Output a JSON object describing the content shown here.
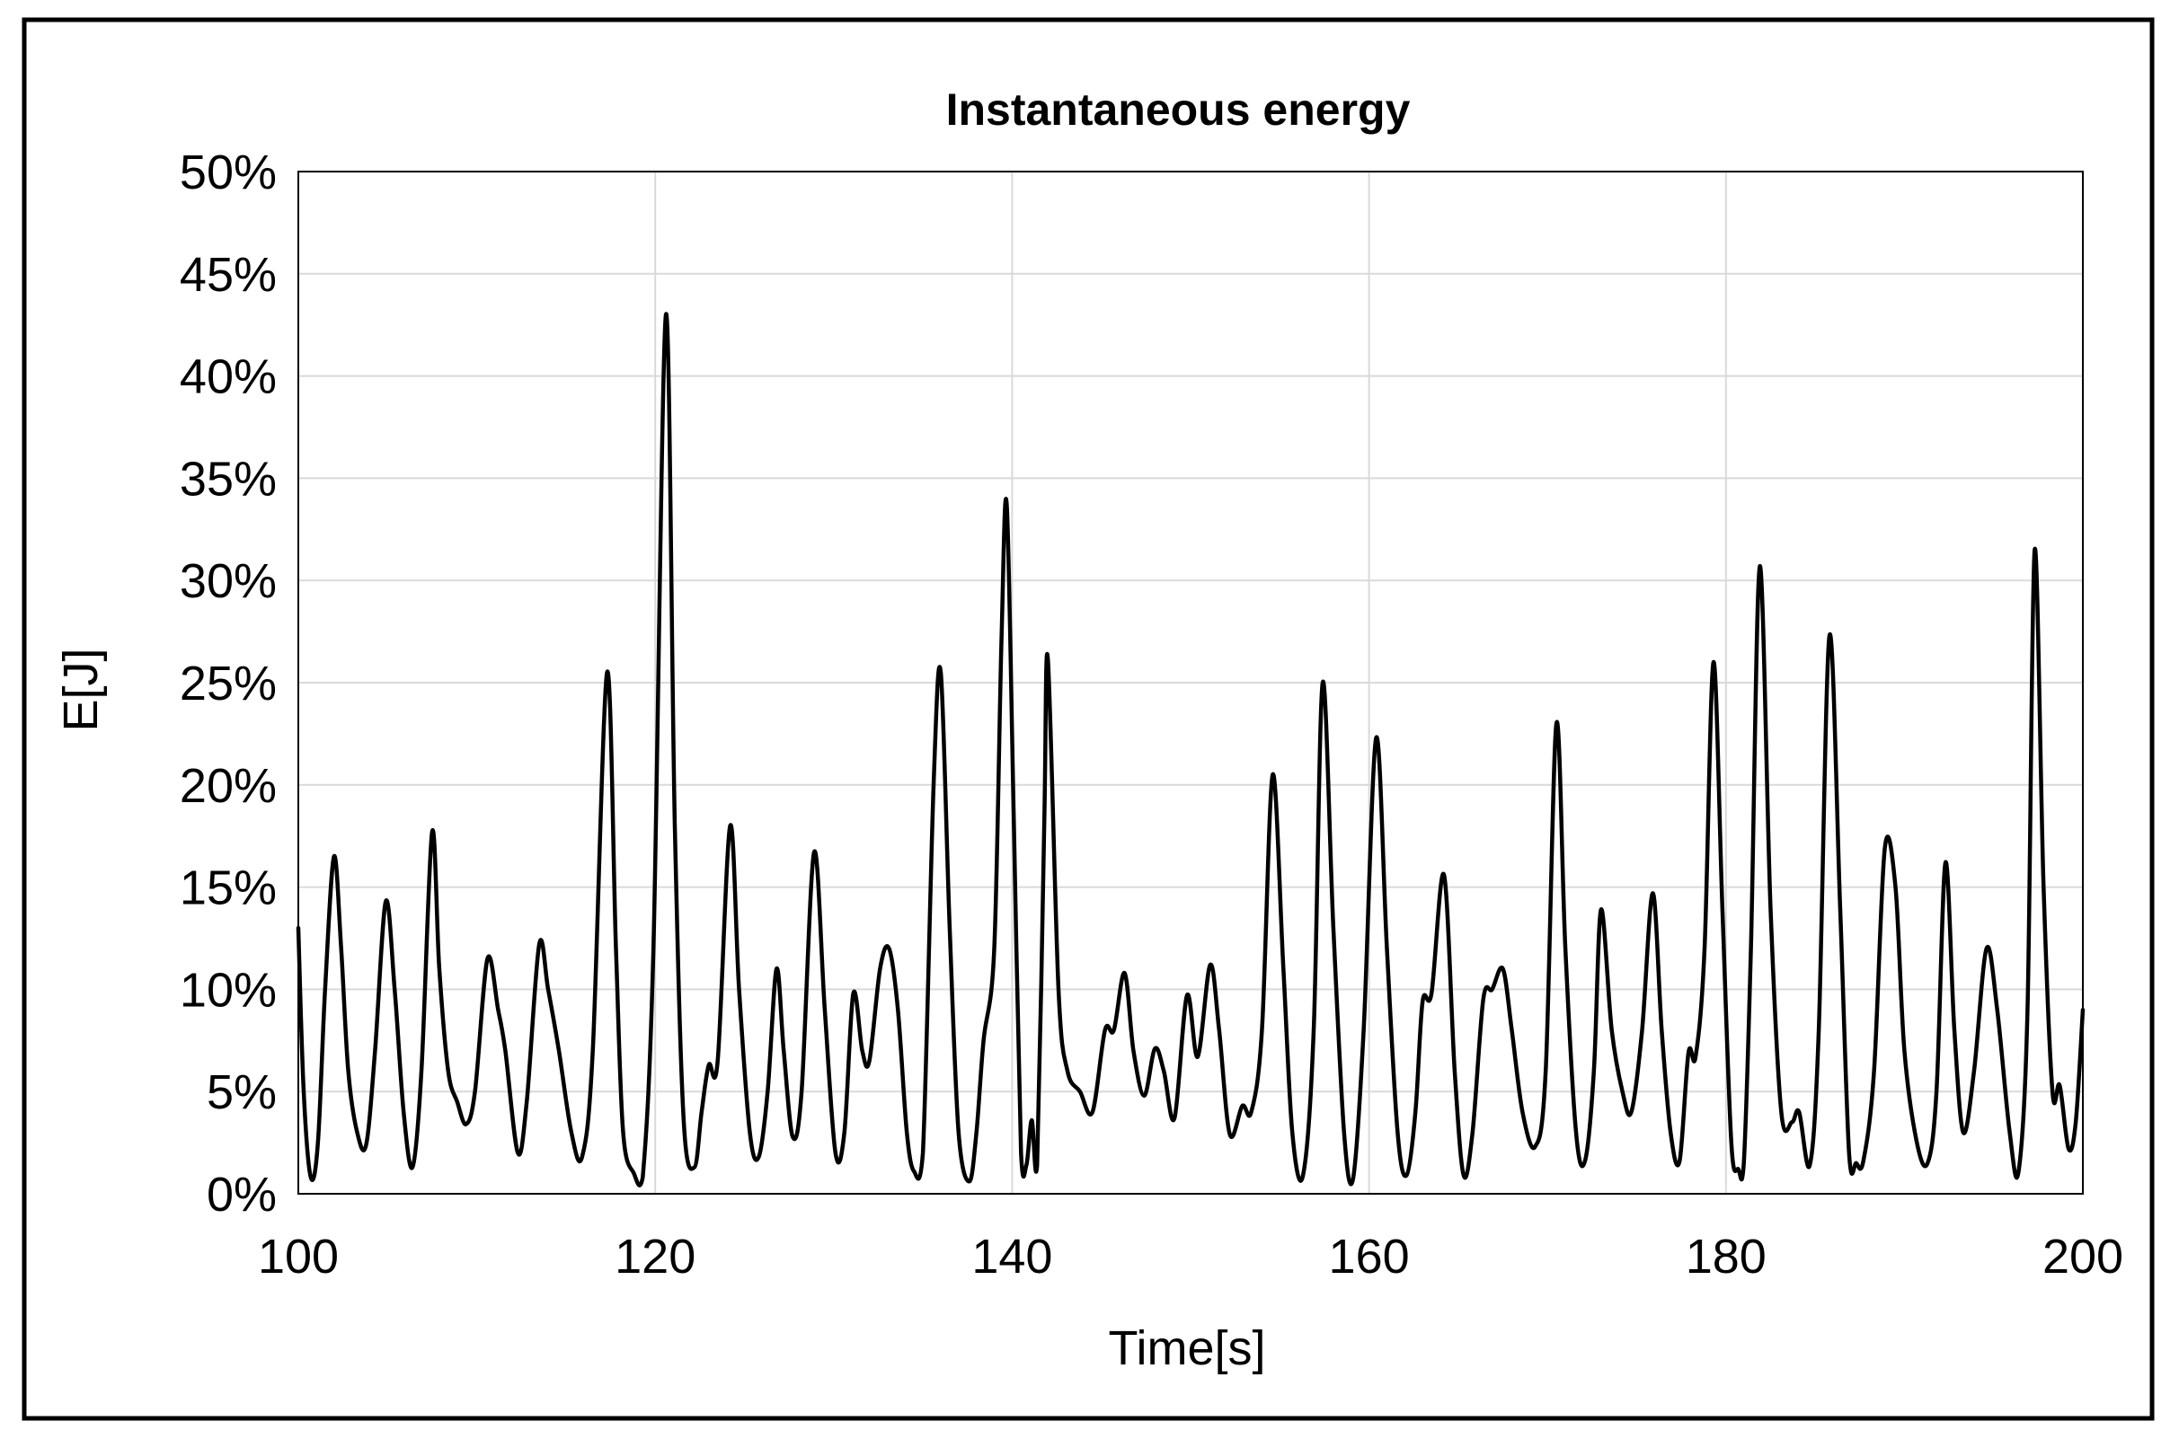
{
  "chart_data": {
    "type": "line",
    "title": "Instantaneous energy",
    "xlabel": "Time[s]",
    "ylabel": "E[J]",
    "xlim": [
      100,
      200
    ],
    "ylim": [
      0,
      50
    ],
    "x_ticks": [
      100,
      120,
      140,
      160,
      180,
      200
    ],
    "x_tick_labels": [
      "100",
      "120",
      "140",
      "160",
      "180",
      "200"
    ],
    "y_ticks": [
      0,
      5,
      10,
      15,
      20,
      25,
      30,
      35,
      40,
      45,
      50
    ],
    "y_tick_labels": [
      "0%",
      "5%",
      "10%",
      "15%",
      "20%",
      "25%",
      "30%",
      "35%",
      "40%",
      "45%",
      "50%"
    ],
    "grid": true,
    "legend": "none",
    "colors": {
      "line": "#000000",
      "grid": "#d9d9d9",
      "frame": "#000000",
      "axis": "#000000"
    },
    "series": [
      {
        "name": "Instantaneous energy",
        "points": [
          [
            100.0,
            13
          ],
          [
            100.3,
            5
          ],
          [
            100.7,
            0.8
          ],
          [
            101.1,
            2.5
          ],
          [
            101.5,
            10
          ],
          [
            102.0,
            16.5
          ],
          [
            102.4,
            12
          ],
          [
            102.8,
            6
          ],
          [
            103.3,
            3
          ],
          [
            103.8,
            2.4
          ],
          [
            104.3,
            7
          ],
          [
            104.9,
            14.3
          ],
          [
            105.4,
            10
          ],
          [
            105.9,
            4
          ],
          [
            106.4,
            1.3
          ],
          [
            106.9,
            6
          ],
          [
            107.5,
            17.7
          ],
          [
            107.9,
            11
          ],
          [
            108.4,
            6
          ],
          [
            108.9,
            4.5
          ],
          [
            109.4,
            3.4
          ],
          [
            109.9,
            5
          ],
          [
            110.6,
            11.5
          ],
          [
            111.2,
            9
          ],
          [
            111.6,
            7
          ],
          [
            112.3,
            2
          ],
          [
            112.8,
            4.5
          ],
          [
            113.5,
            12.2
          ],
          [
            114.0,
            10
          ],
          [
            114.6,
            7
          ],
          [
            115.3,
            3
          ],
          [
            115.9,
            1.8
          ],
          [
            116.5,
            7
          ],
          [
            117.3,
            25.5
          ],
          [
            117.8,
            12
          ],
          [
            118.2,
            3
          ],
          [
            118.8,
            1
          ],
          [
            119.3,
            0.8
          ],
          [
            119.9,
            12
          ],
          [
            120.6,
            43
          ],
          [
            121.1,
            18
          ],
          [
            121.6,
            3.5
          ],
          [
            122.2,
            1.3
          ],
          [
            122.6,
            4
          ],
          [
            123.0,
            6.3
          ],
          [
            123.5,
            6.5
          ],
          [
            124.2,
            18
          ],
          [
            124.7,
            10
          ],
          [
            125.3,
            3
          ],
          [
            125.8,
            1.8
          ],
          [
            126.3,
            5
          ],
          [
            126.8,
            11
          ],
          [
            127.2,
            7
          ],
          [
            127.7,
            2.8
          ],
          [
            128.2,
            5
          ],
          [
            128.9,
            16.7
          ],
          [
            129.5,
            9
          ],
          [
            130.1,
            2
          ],
          [
            130.6,
            3
          ],
          [
            131.1,
            9.8
          ],
          [
            131.6,
            7
          ],
          [
            132.0,
            6.5
          ],
          [
            132.6,
            11
          ],
          [
            133.1,
            12
          ],
          [
            133.6,
            9
          ],
          [
            134.1,
            3
          ],
          [
            134.5,
            1.1
          ],
          [
            135.0,
            2
          ],
          [
            135.6,
            20
          ],
          [
            136.0,
            25.5
          ],
          [
            136.5,
            13
          ],
          [
            137.0,
            3
          ],
          [
            137.6,
            0.6
          ],
          [
            138.0,
            3
          ],
          [
            138.4,
            7.5
          ],
          [
            139.0,
            12
          ],
          [
            139.4,
            27
          ],
          [
            139.7,
            33.7
          ],
          [
            140.1,
            18
          ],
          [
            140.5,
            2
          ],
          [
            140.8,
            1.4
          ],
          [
            141.1,
            3.6
          ],
          [
            141.4,
            1.4
          ],
          [
            141.8,
            18
          ],
          [
            142.0,
            26.2
          ],
          [
            142.6,
            10
          ],
          [
            143.1,
            6
          ],
          [
            143.8,
            5
          ],
          [
            144.5,
            4
          ],
          [
            145.2,
            8
          ],
          [
            145.7,
            8
          ],
          [
            146.3,
            10.8
          ],
          [
            146.8,
            7
          ],
          [
            147.4,
            4.8
          ],
          [
            148.0,
            7.1
          ],
          [
            148.5,
            6
          ],
          [
            149.1,
            3.7
          ],
          [
            149.8,
            9.7
          ],
          [
            150.4,
            6.7
          ],
          [
            151.1,
            11.2
          ],
          [
            151.6,
            8
          ],
          [
            152.2,
            2.9
          ],
          [
            152.9,
            4.3
          ],
          [
            153.4,
            4
          ],
          [
            154.0,
            8
          ],
          [
            154.6,
            20.5
          ],
          [
            155.2,
            11
          ],
          [
            155.7,
            3
          ],
          [
            156.3,
            0.9
          ],
          [
            156.9,
            8
          ],
          [
            157.4,
            25
          ],
          [
            158.0,
            13
          ],
          [
            158.6,
            3
          ],
          [
            159.1,
            0.7
          ],
          [
            159.7,
            8
          ],
          [
            160.4,
            22.3
          ],
          [
            161.0,
            12
          ],
          [
            161.6,
            3
          ],
          [
            162.1,
            0.9
          ],
          [
            162.6,
            4
          ],
          [
            163.0,
            9.4
          ],
          [
            163.5,
            9.8
          ],
          [
            164.2,
            15.6
          ],
          [
            164.8,
            6
          ],
          [
            165.3,
            0.9
          ],
          [
            165.8,
            3
          ],
          [
            166.4,
            9.5
          ],
          [
            166.9,
            10
          ],
          [
            167.5,
            11
          ],
          [
            168.0,
            8
          ],
          [
            168.6,
            4
          ],
          [
            169.3,
            2.3
          ],
          [
            169.9,
            6
          ],
          [
            170.5,
            23
          ],
          [
            171.0,
            12
          ],
          [
            171.6,
            3
          ],
          [
            172.1,
            1.6
          ],
          [
            172.6,
            6
          ],
          [
            173.0,
            13.9
          ],
          [
            173.6,
            8
          ],
          [
            174.2,
            5
          ],
          [
            174.7,
            4
          ],
          [
            175.3,
            8
          ],
          [
            175.9,
            14.7
          ],
          [
            176.4,
            8
          ],
          [
            176.9,
            3
          ],
          [
            177.4,
            1.6
          ],
          [
            177.9,
            6.9
          ],
          [
            178.3,
            6.7
          ],
          [
            178.8,
            12
          ],
          [
            179.3,
            26
          ],
          [
            179.8,
            14
          ],
          [
            180.3,
            2.5
          ],
          [
            180.7,
            1.2
          ],
          [
            181.0,
            1.5
          ],
          [
            181.4,
            12
          ],
          [
            181.9,
            30.7
          ],
          [
            182.5,
            14
          ],
          [
            183.1,
            4
          ],
          [
            183.7,
            3.5
          ],
          [
            184.1,
            4
          ],
          [
            184.7,
            1.4
          ],
          [
            185.2,
            8
          ],
          [
            185.8,
            27.3
          ],
          [
            186.4,
            14
          ],
          [
            186.9,
            2
          ],
          [
            187.3,
            1.5
          ],
          [
            187.7,
            1.6
          ],
          [
            188.3,
            6
          ],
          [
            188.9,
            16.9
          ],
          [
            189.5,
            15
          ],
          [
            190.0,
            7
          ],
          [
            190.7,
            2.5
          ],
          [
            191.3,
            1.5
          ],
          [
            191.8,
            5
          ],
          [
            192.3,
            16.2
          ],
          [
            192.8,
            8
          ],
          [
            193.3,
            3
          ],
          [
            193.9,
            6
          ],
          [
            194.6,
            12
          ],
          [
            195.2,
            9
          ],
          [
            195.9,
            3
          ],
          [
            196.4,
            1.1
          ],
          [
            196.9,
            9
          ],
          [
            197.3,
            31.5
          ],
          [
            197.8,
            15
          ],
          [
            198.3,
            5
          ],
          [
            198.7,
            5.3
          ],
          [
            199.2,
            2.2
          ],
          [
            199.6,
            3.5
          ],
          [
            200.0,
            9
          ]
        ]
      }
    ]
  }
}
